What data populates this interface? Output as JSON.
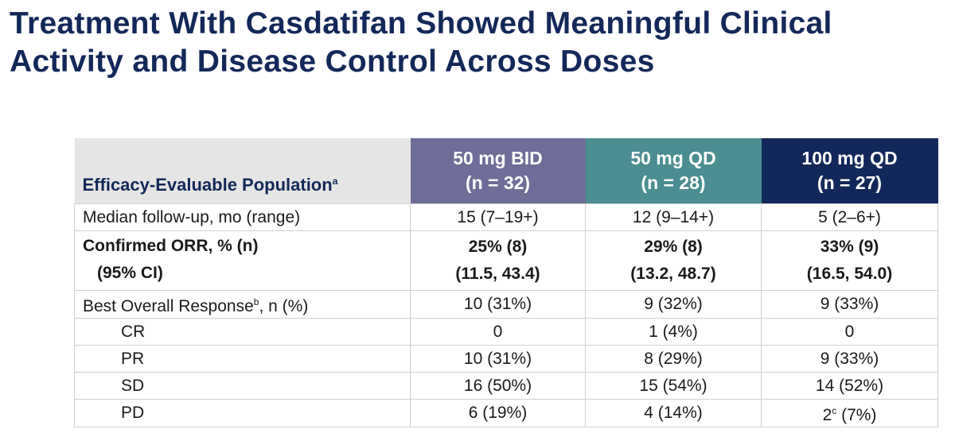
{
  "title": {
    "line1": "Treatment With Casdatifan Showed Meaningful Clinical",
    "line2": "Activity and Disease Control Across Doses"
  },
  "table": {
    "header": {
      "population_label": "Efficacy-Evaluable Population",
      "population_sup": "a",
      "columns": [
        {
          "dose": "50 mg BID",
          "n": "(n = 32)"
        },
        {
          "dose": "50 mg QD",
          "n": "(n = 28)"
        },
        {
          "dose": "100 mg QD",
          "n": "(n = 27)"
        }
      ]
    },
    "followup": {
      "label": "Median follow-up, mo (range)",
      "values": [
        "15 (7–19+)",
        "12 (9–14+)",
        "5 (2–6+)"
      ]
    },
    "orr": {
      "label": "Confirmed ORR, % (n)",
      "ci_label": "(95% CI)",
      "values": [
        "25% (8)",
        "29% (8)",
        "33% (9)"
      ],
      "ci_values": [
        "(11.5, 43.4)",
        "(13.2, 48.7)",
        "(16.5, 54.0)"
      ]
    },
    "bor": {
      "label_pre": "Best Overall Response",
      "label_sup": "b",
      "label_post": ", n (%)",
      "values": [
        "10 (31%)",
        "9 (32%)",
        "9 (33%)"
      ]
    },
    "cr": {
      "label": "CR",
      "values": [
        "0",
        "1 (4%)",
        "0"
      ]
    },
    "pr": {
      "label": "PR",
      "values": [
        "10 (31%)",
        "8 (29%)",
        "9 (33%)"
      ]
    },
    "sd": {
      "label": "SD",
      "values": [
        "16 (50%)",
        "15 (54%)",
        "14 (52%)"
      ]
    },
    "pd": {
      "label": "PD",
      "values": [
        "6 (19%)",
        "4 (14%)"
      ],
      "last_value": "2",
      "last_sup": "c",
      "last_post": " (7%)"
    }
  },
  "colors": {
    "navy": "#13285a",
    "purple": "#6e6d97",
    "teal": "#4b8d91",
    "gray": "#e5e5e5"
  }
}
